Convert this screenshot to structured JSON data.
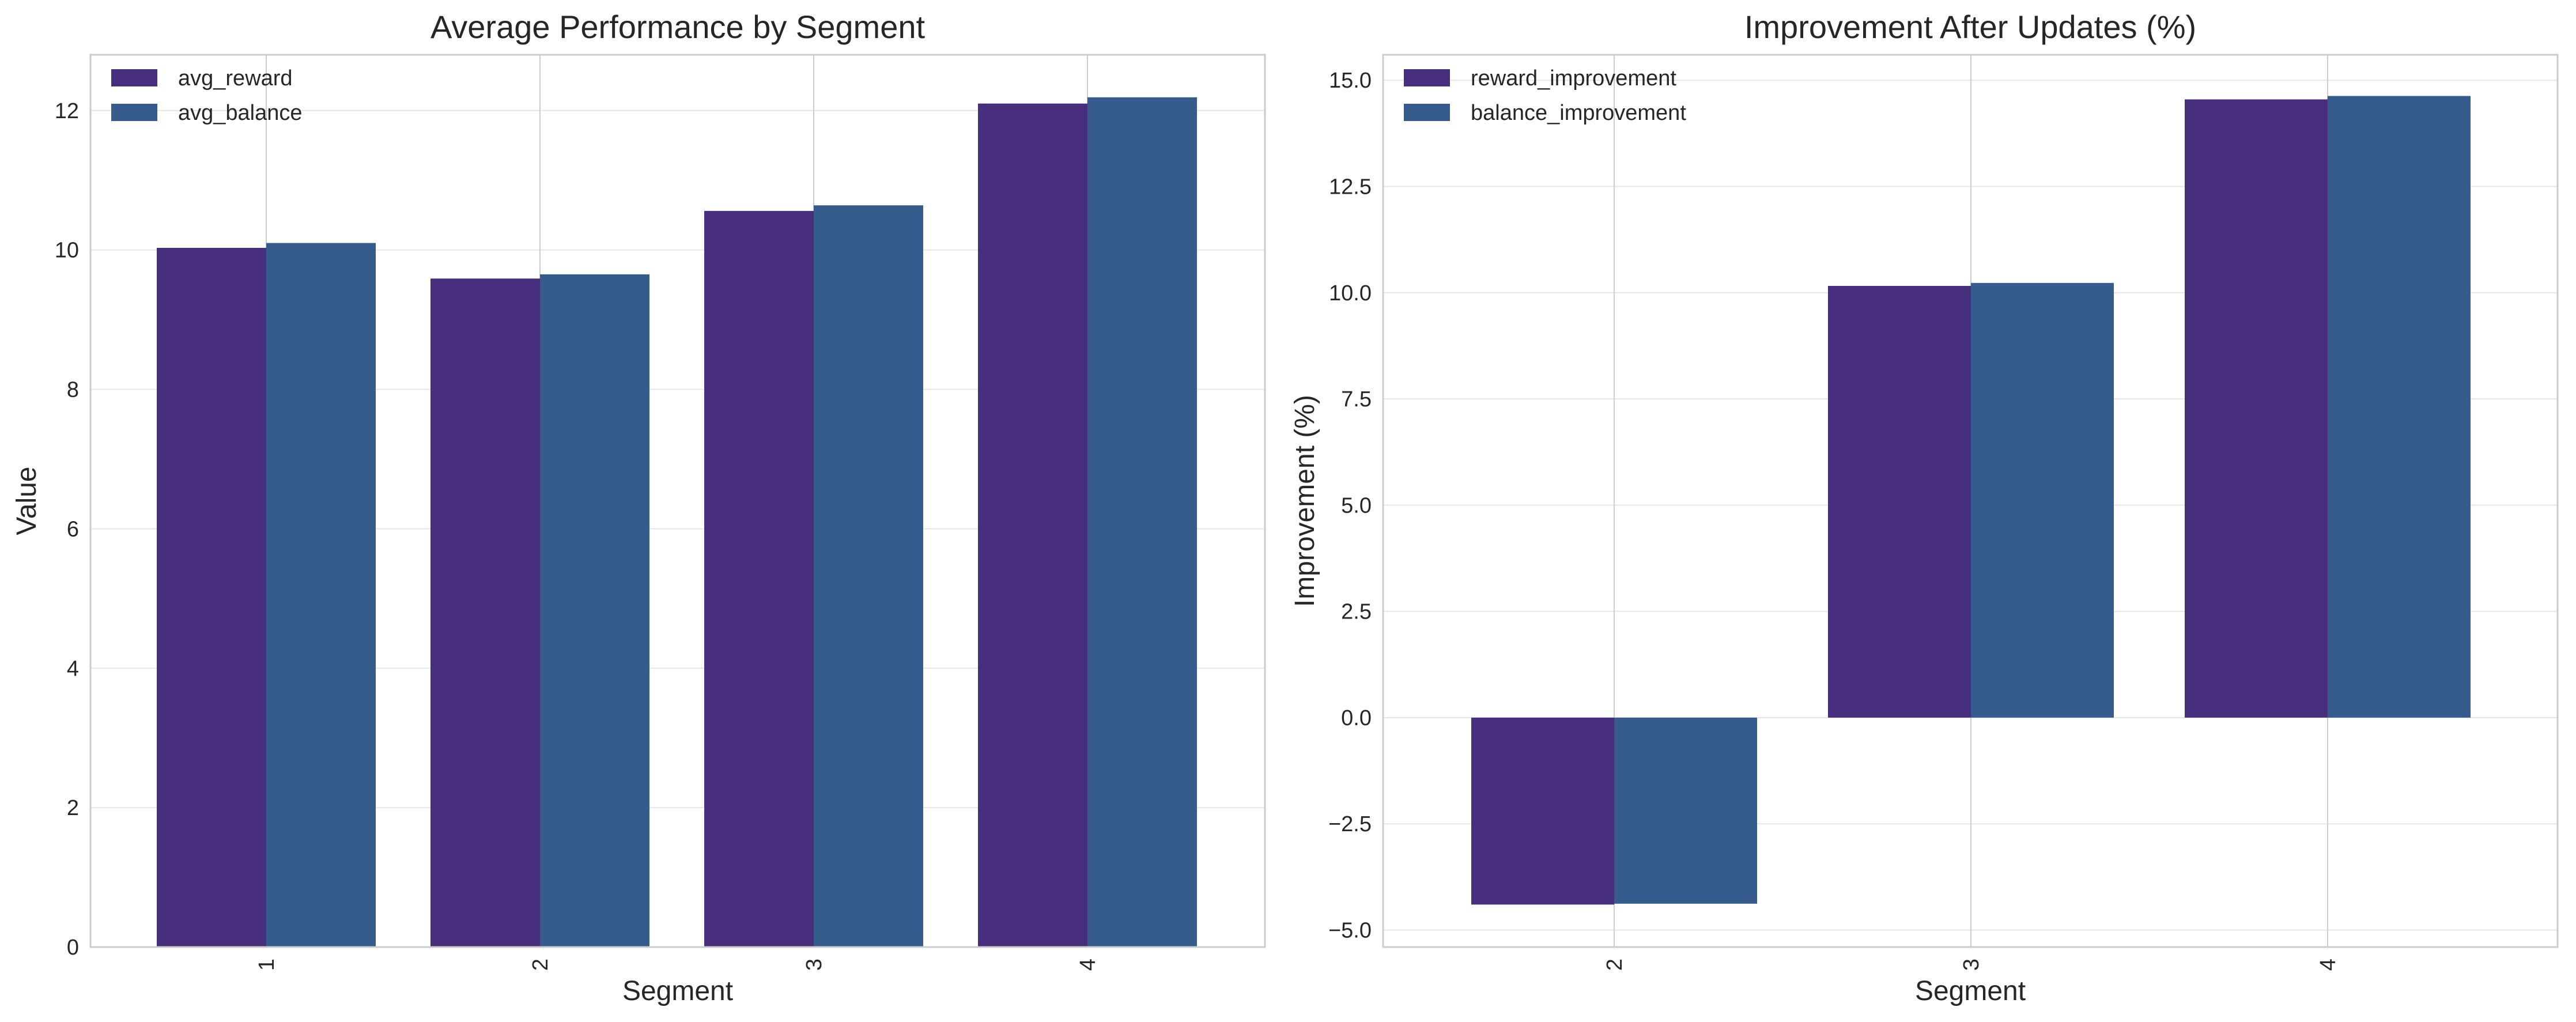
{
  "chart_data": [
    {
      "type": "bar",
      "title": "Average Performance by Segment",
      "xlabel": "Segment",
      "ylabel": "Value",
      "categories": [
        "1",
        "2",
        "3",
        "4"
      ],
      "series": [
        {
          "name": "avg_reward",
          "values": [
            10.03,
            9.59,
            10.56,
            12.1
          ],
          "color": "#472f7d"
        },
        {
          "name": "avg_balance",
          "values": [
            10.1,
            9.65,
            10.64,
            12.19
          ],
          "color": "#365c8d"
        }
      ],
      "ylim": [
        0,
        12.8
      ],
      "yticks": [
        "0",
        "2",
        "4",
        "6",
        "8",
        "10",
        "12"
      ],
      "ytick_values": [
        0,
        2,
        4,
        6,
        8,
        10,
        12
      ],
      "grid": true,
      "legend": "top-left"
    },
    {
      "type": "bar",
      "title": "Improvement After Updates (%)",
      "xlabel": "Segment",
      "ylabel": "Improvement (%)",
      "categories": [
        "2",
        "3",
        "4"
      ],
      "series": [
        {
          "name": "reward_improvement",
          "values": [
            -4.4,
            10.16,
            14.55
          ],
          "color": "#472f7d"
        },
        {
          "name": "balance_improvement",
          "values": [
            -4.38,
            10.23,
            14.63
          ],
          "color": "#365c8d"
        }
      ],
      "ylim": [
        -5.4,
        15.6
      ],
      "yticks": [
        "−5.0",
        "−2.5",
        "0.0",
        "2.5",
        "5.0",
        "7.5",
        "10.0",
        "12.5",
        "15.0"
      ],
      "ytick_values": [
        -5,
        -2.5,
        0,
        2.5,
        5,
        7.5,
        10,
        12.5,
        15
      ],
      "grid": true,
      "legend": "top-left"
    }
  ]
}
